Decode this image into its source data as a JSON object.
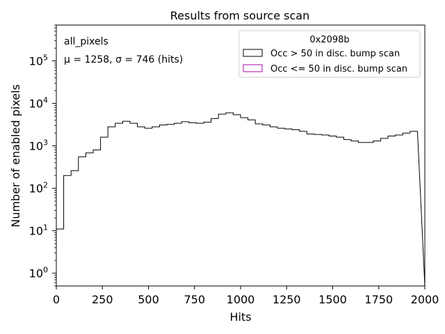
{
  "chart_data": {
    "type": "histogram",
    "title": "Results from source scan",
    "xlabel": "Hits",
    "ylabel": "Number of enabled pixels",
    "xlim": [
      0,
      2000
    ],
    "ylim": [
      0.5,
      700000
    ],
    "yscale": "log",
    "grid": false,
    "bin_width": 40,
    "x_ticks": [
      "0",
      "250",
      "500",
      "750",
      "1000",
      "1250",
      "1500",
      "1750",
      "2000"
    ],
    "x_tick_values": [
      0,
      250,
      500,
      750,
      1000,
      1250,
      1500,
      1750,
      2000
    ],
    "y_ticks": [
      {
        "base": "10",
        "exp": "0",
        "value": 1
      },
      {
        "base": "10",
        "exp": "1",
        "value": 10
      },
      {
        "base": "10",
        "exp": "2",
        "value": 100
      },
      {
        "base": "10",
        "exp": "3",
        "value": 1000
      },
      {
        "base": "10",
        "exp": "4",
        "value": 10000
      },
      {
        "base": "10",
        "exp": "5",
        "value": 100000
      }
    ],
    "annotations": {
      "name": "all_pixels",
      "stats": "μ = 1258, σ = 746 (hits)"
    },
    "legend": {
      "title": "0x2098b",
      "placement": "top-right",
      "entries": [
        {
          "label": "Occ > 50 in disc. bump scan",
          "color": "#000000"
        },
        {
          "label": "Occ <= 50 in disc. bump scan",
          "color": "#aa00aa"
        }
      ]
    },
    "series": [
      {
        "name": "Occ > 50 in disc. bump scan",
        "color": "#000000",
        "bin_edges": [
          0,
          40,
          80,
          120,
          160,
          200,
          240,
          280,
          320,
          360,
          400,
          440,
          480,
          520,
          560,
          600,
          640,
          680,
          720,
          760,
          800,
          840,
          880,
          920,
          960,
          1000,
          1040,
          1080,
          1120,
          1160,
          1200,
          1240,
          1280,
          1320,
          1360,
          1400,
          1440,
          1480,
          1520,
          1560,
          1600,
          1640,
          1680,
          1720,
          1760,
          1800,
          1840,
          1880,
          1920,
          1960
        ],
        "values": [
          11,
          200,
          260,
          550,
          680,
          800,
          1600,
          2800,
          3400,
          3800,
          3400,
          2800,
          2600,
          2800,
          3100,
          3200,
          3400,
          3700,
          3500,
          3400,
          3600,
          4400,
          5600,
          6000,
          5400,
          4600,
          4100,
          3300,
          3100,
          2800,
          2600,
          2500,
          2400,
          2200,
          1900,
          1850,
          1800,
          1700,
          1600,
          1400,
          1300,
          1200,
          1200,
          1300,
          1500,
          1700,
          1800,
          2000,
          2200
        ],
        "last_edge": 1960
      },
      {
        "name": "Occ <= 50 in disc. bump scan",
        "color": "#aa00aa",
        "values": []
      }
    ]
  }
}
